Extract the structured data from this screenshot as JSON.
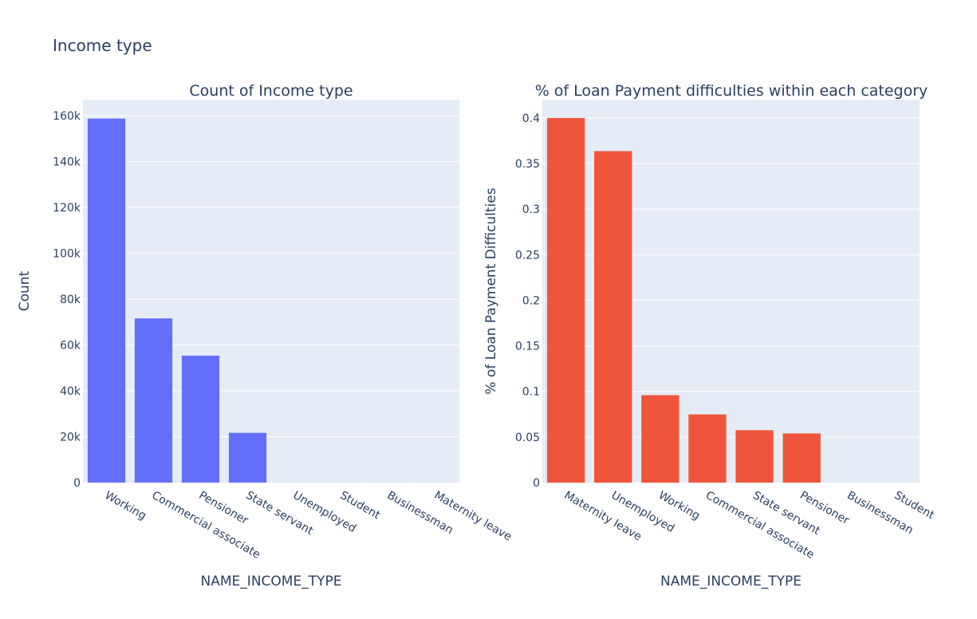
{
  "figure": {
    "title": "Income type"
  },
  "chart_data": [
    {
      "type": "bar",
      "title": "Count of Income type",
      "xlabel": "NAME_INCOME_TYPE",
      "ylabel": "Count",
      "categories": [
        "Working",
        "Commercial associate",
        "Pensioner",
        "State servant",
        "Unemployed",
        "Student",
        "Businessman",
        "Maternity leave"
      ],
      "values": [
        158774,
        71617,
        55362,
        21703,
        22,
        18,
        10,
        5
      ],
      "ylim": [
        0,
        167000
      ],
      "yticks": [
        0,
        20000,
        40000,
        60000,
        80000,
        100000,
        120000,
        140000,
        160000
      ],
      "yticklabels": [
        "0",
        "20k",
        "40k",
        "60k",
        "80k",
        "100k",
        "120k",
        "140k",
        "160k"
      ],
      "color": "#636efa",
      "grid": true
    },
    {
      "type": "bar",
      "title": "% of Loan Payment difficulties within each category",
      "xlabel": "NAME_INCOME_TYPE",
      "ylabel": "% of Loan Payment Difficulties",
      "categories": [
        "Maternity leave",
        "Unemployed",
        "Working",
        "Commercial associate",
        "State servant",
        "Pensioner",
        "Businessman",
        "Student"
      ],
      "values": [
        0.4,
        0.3636,
        0.0959,
        0.0748,
        0.0575,
        0.0539,
        0,
        0
      ],
      "ylim": [
        0,
        0.42
      ],
      "yticks": [
        0,
        0.05,
        0.1,
        0.15,
        0.2,
        0.25,
        0.3,
        0.35,
        0.4
      ],
      "yticklabels": [
        "0",
        "0.05",
        "0.1",
        "0.15",
        "0.2",
        "0.25",
        "0.3",
        "0.35",
        "0.4"
      ],
      "color": "#ef553b",
      "grid": true
    }
  ]
}
